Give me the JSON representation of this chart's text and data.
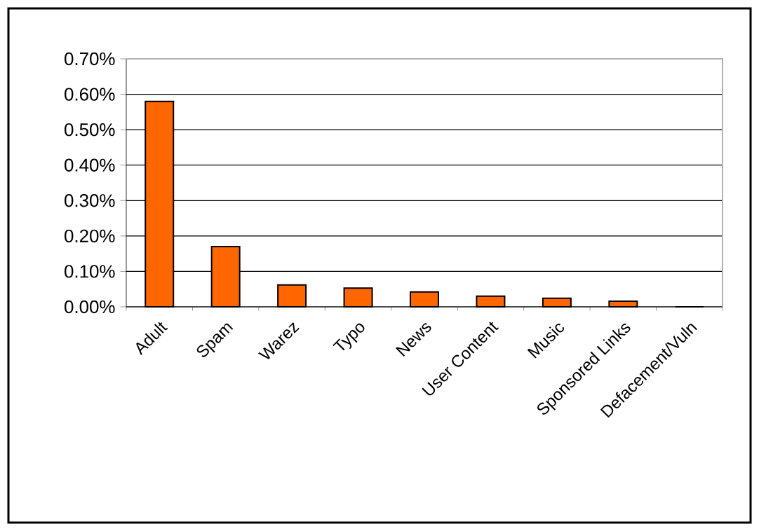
{
  "chart_data": {
    "type": "bar",
    "categories": [
      "Adult",
      "Spam",
      "Warez",
      "Typo",
      "News",
      "User Content",
      "Music",
      "Sponsored Links",
      "Defacement/Vuln"
    ],
    "values": [
      0.58,
      0.17,
      0.062,
      0.053,
      0.042,
      0.03,
      0.024,
      0.016,
      0
    ],
    "color": "#ff6600",
    "ylim": [
      0,
      0.7
    ],
    "yticks": [
      {
        "value": 0,
        "label": "0.00%"
      },
      {
        "value": 0.1,
        "label": "0.10%"
      },
      {
        "value": 0.2,
        "label": "0.20%"
      },
      {
        "value": 0.3,
        "label": "0.30%"
      },
      {
        "value": 0.4,
        "label": "0.40%"
      },
      {
        "value": 0.5,
        "label": "0.50%"
      },
      {
        "value": 0.6,
        "label": "0.60%"
      },
      {
        "value": 0.7,
        "label": "0.70%"
      }
    ],
    "grid": "y"
  }
}
